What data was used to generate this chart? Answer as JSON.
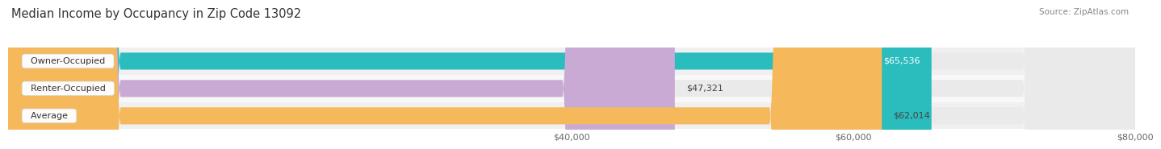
{
  "title": "Median Income by Occupancy in Zip Code 13092",
  "source": "Source: ZipAtlas.com",
  "categories": [
    "Owner-Occupied",
    "Renter-Occupied",
    "Average"
  ],
  "values": [
    65536,
    47321,
    62014
  ],
  "labels": [
    "$65,536",
    "$47,321",
    "$62,014"
  ],
  "bar_colors": [
    "#2bbcbe",
    "#c9aad5",
    "#f5b85a"
  ],
  "bar_bg_color": "#eaeaea",
  "xmin": 0,
  "xmax": 80000,
  "xticks": [
    40000,
    60000,
    80000
  ],
  "xtick_labels": [
    "$40,000",
    "$60,000",
    "$80,000"
  ],
  "title_fontsize": 10.5,
  "source_fontsize": 7.5,
  "bar_label_fontsize": 8,
  "category_fontsize": 8,
  "tick_fontsize": 8,
  "bar_height": 0.62,
  "row_bg_colors": [
    "#f0f0f0",
    "#f8f8f8",
    "#f0f0f0"
  ],
  "fig_bg_color": "#ffffff",
  "label_color_inside": [
    "#ffffff",
    "#555555",
    "#555555"
  ],
  "label_inside": [
    true,
    false,
    false
  ]
}
